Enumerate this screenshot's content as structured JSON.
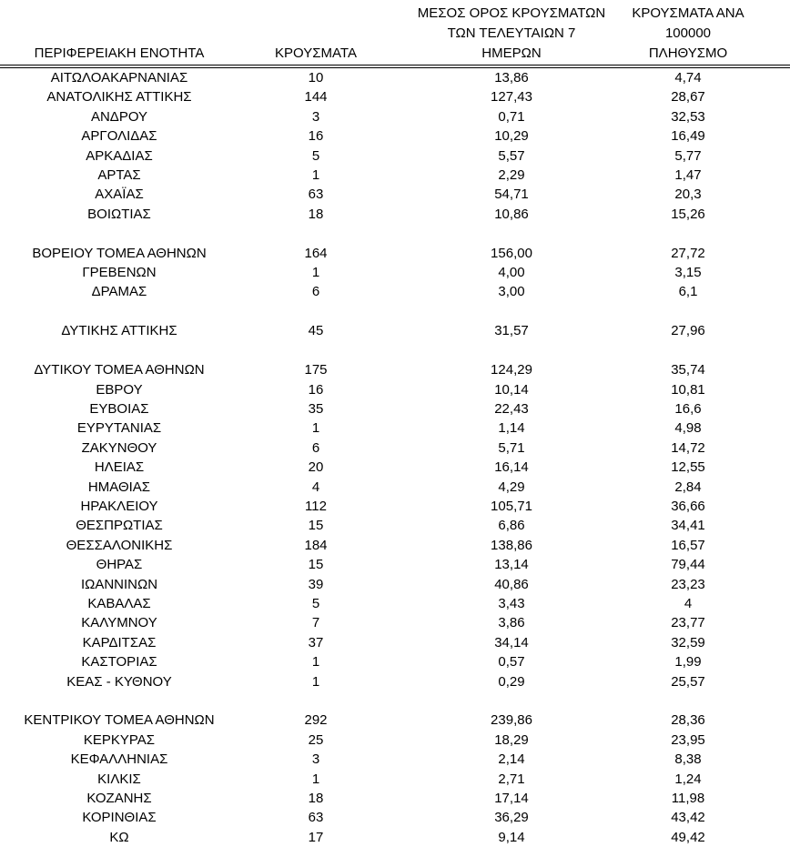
{
  "colors": {
    "text": "#000000",
    "background": "#ffffff",
    "header_rule": "#000000"
  },
  "table": {
    "headers": {
      "region": "ΠΕΡΙΦΕΡΕΙΑΚΗ ΕΝΟΤΗΤΑ",
      "cases": "ΚΡΟΥΣΜΑΤΑ",
      "avg7_lines": [
        "ΜΕΣΟΣ ΟΡΟΣ ΚΡΟΥΣΜΑΤΩΝ",
        "ΤΩΝ ΤΕΛΕΥΤΑΙΩΝ 7",
        "ΗΜΕΡΩΝ"
      ],
      "per100k_lines": [
        "ΚΡΟΥΣΜΑΤΑ ΑΝΑ 100000",
        "ΠΛΗΘΥΣΜΟ"
      ]
    },
    "rows": [
      {
        "name": "ΑΙΤΩΛΟΑΚΑΡΝΑΝΙΑΣ",
        "cases": "10",
        "avg7": "13,86",
        "per100k": "4,74"
      },
      {
        "name": "ΑΝΑΤΟΛΙΚΗΣ ΑΤΤΙΚΗΣ",
        "cases": "144",
        "avg7": "127,43",
        "per100k": "28,67"
      },
      {
        "name": "ΑΝΔΡΟΥ",
        "cases": "3",
        "avg7": "0,71",
        "per100k": "32,53"
      },
      {
        "name": "ΑΡΓΟΛΙΔΑΣ",
        "cases": "16",
        "avg7": "10,29",
        "per100k": "16,49"
      },
      {
        "name": "ΑΡΚΑΔΙΑΣ",
        "cases": "5",
        "avg7": "5,57",
        "per100k": "5,77"
      },
      {
        "name": "ΑΡΤΑΣ",
        "cases": "1",
        "avg7": "2,29",
        "per100k": "1,47"
      },
      {
        "name": "ΑΧΑΪΑΣ",
        "cases": "63",
        "avg7": "54,71",
        "per100k": "20,3"
      },
      {
        "name": "ΒΟΙΩΤΙΑΣ",
        "cases": "18",
        "avg7": "10,86",
        "per100k": "15,26"
      },
      {
        "spacer": true
      },
      {
        "name": "ΒΟΡΕΙΟΥ ΤΟΜΕΑ ΑΘΗΝΩΝ",
        "cases": "164",
        "avg7": "156,00",
        "per100k": "27,72"
      },
      {
        "name": "ΓΡΕΒΕΝΩΝ",
        "cases": "1",
        "avg7": "4,00",
        "per100k": "3,15"
      },
      {
        "name": "ΔΡΑΜΑΣ",
        "cases": "6",
        "avg7": "3,00",
        "per100k": "6,1"
      },
      {
        "spacer": true
      },
      {
        "name": "ΔΥΤΙΚΗΣ ΑΤΤΙΚΗΣ",
        "cases": "45",
        "avg7": "31,57",
        "per100k": "27,96"
      },
      {
        "spacer": true
      },
      {
        "name": "ΔΥΤΙΚΟΥ ΤΟΜΕΑ ΑΘΗΝΩΝ",
        "cases": "175",
        "avg7": "124,29",
        "per100k": "35,74"
      },
      {
        "name": "ΕΒΡΟΥ",
        "cases": "16",
        "avg7": "10,14",
        "per100k": "10,81"
      },
      {
        "name": "ΕΥΒΟΙΑΣ",
        "cases": "35",
        "avg7": "22,43",
        "per100k": "16,6"
      },
      {
        "name": "ΕΥΡΥΤΑΝΙΑΣ",
        "cases": "1",
        "avg7": "1,14",
        "per100k": "4,98"
      },
      {
        "name": "ΖΑΚΥΝΘΟΥ",
        "cases": "6",
        "avg7": "5,71",
        "per100k": "14,72"
      },
      {
        "name": "ΗΛΕΙΑΣ",
        "cases": "20",
        "avg7": "16,14",
        "per100k": "12,55"
      },
      {
        "name": "ΗΜΑΘΙΑΣ",
        "cases": "4",
        "avg7": "4,29",
        "per100k": "2,84"
      },
      {
        "name": "ΗΡΑΚΛΕΙΟΥ",
        "cases": "112",
        "avg7": "105,71",
        "per100k": "36,66"
      },
      {
        "name": "ΘΕΣΠΡΩΤΙΑΣ",
        "cases": "15",
        "avg7": "6,86",
        "per100k": "34,41"
      },
      {
        "name": "ΘΕΣΣΑΛΟΝΙΚΗΣ",
        "cases": "184",
        "avg7": "138,86",
        "per100k": "16,57"
      },
      {
        "name": "ΘΗΡΑΣ",
        "cases": "15",
        "avg7": "13,14",
        "per100k": "79,44"
      },
      {
        "name": "ΙΩΑΝΝΙΝΩΝ",
        "cases": "39",
        "avg7": "40,86",
        "per100k": "23,23"
      },
      {
        "name": "ΚΑΒΑΛΑΣ",
        "cases": "5",
        "avg7": "3,43",
        "per100k": "4"
      },
      {
        "name": "ΚΑΛΥΜΝΟΥ",
        "cases": "7",
        "avg7": "3,86",
        "per100k": "23,77"
      },
      {
        "name": "ΚΑΡΔΙΤΣΑΣ",
        "cases": "37",
        "avg7": "34,14",
        "per100k": "32,59"
      },
      {
        "name": "ΚΑΣΤΟΡΙΑΣ",
        "cases": "1",
        "avg7": "0,57",
        "per100k": "1,99"
      },
      {
        "name": "ΚΕΑΣ - ΚΥΘΝΟΥ",
        "cases": "1",
        "avg7": "0,29",
        "per100k": "25,57"
      },
      {
        "spacer": true
      },
      {
        "name": "ΚΕΝΤΡΙΚΟΥ ΤΟΜΕΑ ΑΘΗΝΩΝ",
        "cases": "292",
        "avg7": "239,86",
        "per100k": "28,36"
      },
      {
        "name": "ΚΕΡΚΥΡΑΣ",
        "cases": "25",
        "avg7": "18,29",
        "per100k": "23,95"
      },
      {
        "name": "ΚΕΦΑΛΛΗΝΙΑΣ",
        "cases": "3",
        "avg7": "2,14",
        "per100k": "8,38"
      },
      {
        "name": "ΚΙΛΚΙΣ",
        "cases": "1",
        "avg7": "2,71",
        "per100k": "1,24"
      },
      {
        "name": "ΚΟΖΑΝΗΣ",
        "cases": "18",
        "avg7": "17,14",
        "per100k": "11,98"
      },
      {
        "name": "ΚΟΡΙΝΘΙΑΣ",
        "cases": "63",
        "avg7": "36,29",
        "per100k": "43,42"
      },
      {
        "name": "ΚΩ",
        "cases": "17",
        "avg7": "9,14",
        "per100k": "49,42"
      }
    ]
  }
}
